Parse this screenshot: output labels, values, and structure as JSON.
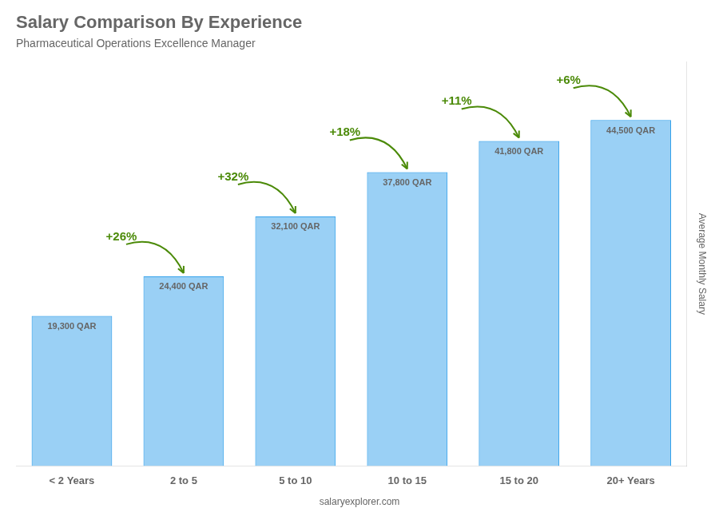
{
  "chart_data": {
    "type": "bar",
    "title": "Salary Comparison By Experience",
    "subtitle": "Pharmaceutical Operations Excellence Manager",
    "ylabel": "Average Monthly Salary",
    "footer": "salaryexplorer.com",
    "categories": [
      "< 2 Years",
      "2 to 5",
      "5 to 10",
      "10 to 15",
      "15 to 20",
      "20+ Years"
    ],
    "values": [
      19300,
      24400,
      32100,
      37800,
      41800,
      44500
    ],
    "value_labels": [
      "19,300 QAR",
      "24,400 QAR",
      "32,100 QAR",
      "37,800 QAR",
      "41,800 QAR",
      "44,500 QAR"
    ],
    "annotations": [
      "+26%",
      "+32%",
      "+18%",
      "+11%",
      "+6%"
    ],
    "data_labels": true,
    "ylim": [
      0,
      52000
    ],
    "yticks": [],
    "tick_labels": "x",
    "grid": false
  }
}
